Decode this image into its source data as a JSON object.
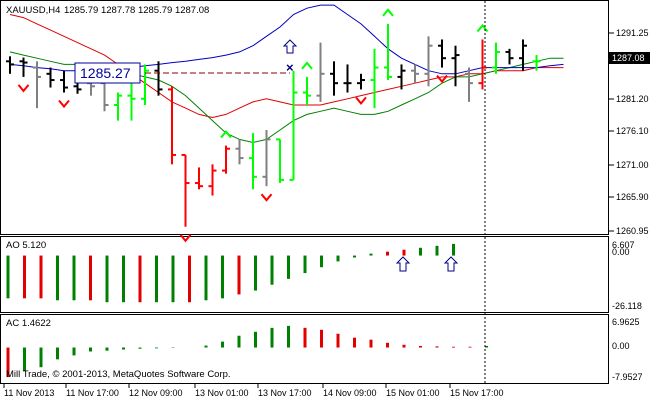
{
  "symbol_header": "XAUUSD,H4",
  "ohlc_header": "1285.79 1287.78 1285.79 1287.08",
  "price_tag": "1287.08",
  "callout_price": "1285.27",
  "copyright": "Mill Trade, © 2001-2013, MetaQuotes Software Corp.",
  "colors": {
    "up": "#00ff00",
    "down": "#ff0000",
    "neutral": "#000000",
    "gray": "#808080",
    "ma_red": "#e00000",
    "ma_green": "#008000",
    "ma_blue": "#0000c0",
    "hist_green": "#008000",
    "hist_red": "#e00000",
    "arrow_blue": "#000080"
  },
  "chart_data": [
    {
      "type": "line",
      "title": "XAUUSD,H4",
      "y_ticks": [
        "1291.25",
        "1287.08",
        "1281.20",
        "1276.10",
        "1271.00",
        "1265.90",
        "1260.95"
      ],
      "x_ticks": [
        "11 Nov 2013",
        "11 Nov 17:00",
        "12 Nov 09:00",
        "13 Nov 01:00",
        "13 Nov 17:00",
        "14 Nov 09:00",
        "15 Nov 01:00",
        "15 Nov 17:00"
      ],
      "ylim": [
        1259.5,
        1296.5
      ],
      "bars": [
        {
          "o": 1287.0,
          "h": 1287.8,
          "l": 1285.0,
          "c": 1286.5,
          "col": "neutral"
        },
        {
          "o": 1287.0,
          "h": 1287.6,
          "l": 1284.5,
          "c": 1286.8,
          "col": "neutral"
        },
        {
          "o": 1286.0,
          "h": 1287.0,
          "l": 1279.5,
          "c": 1284.5,
          "col": "gray"
        },
        {
          "o": 1285.0,
          "h": 1286.0,
          "l": 1282.8,
          "c": 1284.0,
          "col": "neutral"
        },
        {
          "o": 1284.0,
          "h": 1285.5,
          "l": 1282.0,
          "c": 1282.8,
          "col": "neutral"
        },
        {
          "o": 1283.0,
          "h": 1284.0,
          "l": 1281.8,
          "c": 1282.5,
          "col": "neutral"
        },
        {
          "o": 1283.5,
          "h": 1284.0,
          "l": 1281.5,
          "c": 1283.0,
          "col": "gray"
        },
        {
          "o": 1283.5,
          "h": 1284.5,
          "l": 1279.0,
          "c": 1280.0,
          "col": "gray"
        },
        {
          "o": 1280.0,
          "h": 1282.0,
          "l": 1277.5,
          "c": 1281.5,
          "col": "up"
        },
        {
          "o": 1281.5,
          "h": 1284.0,
          "l": 1277.5,
          "c": 1281.0,
          "col": "up"
        },
        {
          "o": 1281.0,
          "h": 1286.5,
          "l": 1280.0,
          "c": 1285.5,
          "col": "up"
        },
        {
          "o": 1285.5,
          "h": 1287.0,
          "l": 1281.5,
          "c": 1282.5,
          "col": "neutral"
        },
        {
          "o": 1282.5,
          "h": 1283.0,
          "l": 1270.5,
          "c": 1272.0,
          "col": "down"
        },
        {
          "o": 1272.0,
          "h": 1272.0,
          "l": 1260.5,
          "c": 1267.5,
          "col": "down"
        },
        {
          "o": 1267.5,
          "h": 1270.0,
          "l": 1266.5,
          "c": 1267.0,
          "col": "down"
        },
        {
          "o": 1267.0,
          "h": 1270.5,
          "l": 1265.5,
          "c": 1269.5,
          "col": "down"
        },
        {
          "o": 1269.5,
          "h": 1273.5,
          "l": 1269.0,
          "c": 1273.0,
          "col": "down"
        },
        {
          "o": 1273.0,
          "h": 1274.5,
          "l": 1270.5,
          "c": 1271.5,
          "col": "gray"
        },
        {
          "o": 1271.5,
          "h": 1275.5,
          "l": 1266.5,
          "c": 1268.5,
          "col": "up"
        },
        {
          "o": 1268.5,
          "h": 1276.0,
          "l": 1267.0,
          "c": 1274.5,
          "col": "gray"
        },
        {
          "o": 1274.5,
          "h": 1274.5,
          "l": 1267.5,
          "c": 1268.0,
          "col": "up"
        },
        {
          "o": 1268.0,
          "h": 1285.5,
          "l": 1268.0,
          "c": 1282.0,
          "col": "up"
        },
        {
          "o": 1282.0,
          "h": 1284.5,
          "l": 1280.0,
          "c": 1281.5,
          "col": "up"
        },
        {
          "o": 1281.5,
          "h": 1290.0,
          "l": 1280.5,
          "c": 1285.0,
          "col": "gray"
        },
        {
          "o": 1285.0,
          "h": 1287.0,
          "l": 1281.5,
          "c": 1283.5,
          "col": "neutral"
        },
        {
          "o": 1283.5,
          "h": 1286.5,
          "l": 1282.0,
          "c": 1283.5,
          "col": "neutral"
        },
        {
          "o": 1283.5,
          "h": 1285.0,
          "l": 1282.5,
          "c": 1284.0,
          "col": "neutral"
        },
        {
          "o": 1284.0,
          "h": 1289.0,
          "l": 1279.5,
          "c": 1286.0,
          "col": "up"
        },
        {
          "o": 1286.0,
          "h": 1293.0,
          "l": 1284.0,
          "c": 1284.5,
          "col": "up"
        },
        {
          "o": 1284.5,
          "h": 1286.5,
          "l": 1282.5,
          "c": 1285.5,
          "col": "neutral"
        },
        {
          "o": 1285.5,
          "h": 1286.5,
          "l": 1283.5,
          "c": 1285.0,
          "col": "gray"
        },
        {
          "o": 1285.0,
          "h": 1291.0,
          "l": 1283.0,
          "c": 1289.5,
          "col": "gray"
        },
        {
          "o": 1289.5,
          "h": 1290.5,
          "l": 1286.0,
          "c": 1287.5,
          "col": "neutral"
        },
        {
          "o": 1287.5,
          "h": 1289.5,
          "l": 1283.0,
          "c": 1288.0,
          "col": "neutral"
        },
        {
          "o": 1285.0,
          "h": 1286.0,
          "l": 1280.5,
          "c": 1283.5,
          "col": "gray"
        },
        {
          "o": 1283.5,
          "h": 1290.5,
          "l": 1282.5,
          "c": 1286.0,
          "col": "down"
        },
        {
          "o": 1286.0,
          "h": 1290.0,
          "l": 1285.0,
          "c": 1288.5,
          "col": "up"
        },
        {
          "o": 1288.5,
          "h": 1289.0,
          "l": 1286.5,
          "c": 1287.5,
          "col": "neutral"
        },
        {
          "o": 1287.5,
          "h": 1290.5,
          "l": 1285.5,
          "c": 1289.5,
          "col": "neutral"
        },
        {
          "o": 1287.0,
          "h": 1288.0,
          "l": 1285.5,
          "c": 1287.0,
          "col": "up"
        }
      ],
      "series": [
        {
          "values": [
            1294.5,
            1294.0,
            1293.0,
            1292.0,
            1291.0,
            1290.0,
            1289.0,
            1288.0,
            1286.5,
            1285.0,
            1283.5,
            1282.0,
            1280.5,
            1279.5,
            1278.5,
            1278.0,
            1278.5,
            1279.5,
            1280.5,
            1281.0,
            1280.5,
            1280.0,
            1280.0,
            1280.0,
            1280.5,
            1281.0,
            1281.5,
            1282.0,
            1282.5,
            1283.0,
            1283.5,
            1284.0,
            1284.5,
            1284.5,
            1285.0,
            1285.0,
            1285.5,
            1285.5,
            1285.5,
            1286.0,
            1286.0,
            1286.0
          ]
        },
        {
          "values": [
            1288.5,
            1288.0,
            1287.5,
            1287.0,
            1286.5,
            1286.5,
            1286.5,
            1286.0,
            1285.5,
            1285.0,
            1284.5,
            1284.0,
            1283.0,
            1281.5,
            1279.5,
            1277.5,
            1275.5,
            1274.5,
            1274.0,
            1274.5,
            1276.0,
            1277.5,
            1278.5,
            1279.0,
            1279.5,
            1279.0,
            1278.5,
            1278.5,
            1279.0,
            1280.0,
            1281.0,
            1282.0,
            1283.5,
            1284.5,
            1284.5,
            1285.0,
            1285.5,
            1286.0,
            1286.5,
            1287.0,
            1287.5,
            1287.5
          ]
        },
        {
          "values": [
            1286.5,
            1286.3,
            1286.0,
            1285.8,
            1285.5,
            1285.5,
            1285.5,
            1285.5,
            1285.7,
            1286.0,
            1286.3,
            1286.5,
            1286.8,
            1287.0,
            1287.3,
            1287.6,
            1288.0,
            1288.5,
            1289.5,
            1291.0,
            1292.5,
            1294.5,
            1295.5,
            1296.0,
            1296.0,
            1294.5,
            1293.0,
            1291.0,
            1289.0,
            1287.5,
            1286.5,
            1285.5,
            1285.0,
            1285.0,
            1285.5,
            1286.0,
            1286.0,
            1286.0,
            1286.0,
            1286.0,
            1286.3,
            1286.5
          ]
        }
      ],
      "signals_down": [
        1,
        4,
        13,
        19,
        26,
        32
      ],
      "signals_up": [
        6,
        16,
        22,
        28,
        35
      ]
    },
    {
      "type": "bar",
      "title": "AO 5.120",
      "y_ticks": [
        "6.607",
        "0.00",
        "-26.118"
      ],
      "ylim": [
        -28,
        8
      ],
      "values": [
        -22,
        -22,
        -22,
        -23,
        -23,
        -23,
        -24,
        -24,
        -24,
        -24,
        -24,
        -24,
        -23,
        -22,
        -20,
        -18,
        -15,
        -12,
        -9,
        -6,
        -3,
        -1,
        1,
        2,
        3,
        4,
        5,
        6
      ],
      "colors": [
        "green",
        "red",
        "red",
        "green",
        "green",
        "red",
        "green",
        "green",
        "red",
        "green",
        "green",
        "red",
        "green",
        "green",
        "red",
        "green",
        "green",
        "green",
        "green",
        "green",
        "green",
        "green",
        "green",
        "red",
        "red",
        "green",
        "green",
        "green"
      ]
    },
    {
      "type": "bar",
      "title": "AC 1.4622",
      "y_ticks": [
        "6.9625",
        "0.00",
        "-7.9527"
      ],
      "ylim": [
        -8.5,
        7.5
      ],
      "values": [
        -7.5,
        -6,
        -5,
        -3,
        -2,
        -1,
        -0.8,
        -0.5,
        -0.3,
        -0.2,
        -0.1,
        0,
        0.5,
        1.5,
        3,
        4,
        5,
        5.5,
        5,
        4.5,
        3.5,
        2.5,
        2,
        1.2,
        0.7,
        0.4,
        0.3,
        0.2,
        0.2,
        0.4
      ],
      "colors": [
        "red",
        "green",
        "green",
        "green",
        "green",
        "green",
        "green",
        "green",
        "green",
        "green",
        "green",
        "green",
        "green",
        "green",
        "green",
        "green",
        "green",
        "green",
        "red",
        "red",
        "red",
        "red",
        "red",
        "red",
        "red",
        "red",
        "red",
        "red",
        "red",
        "green"
      ]
    }
  ]
}
